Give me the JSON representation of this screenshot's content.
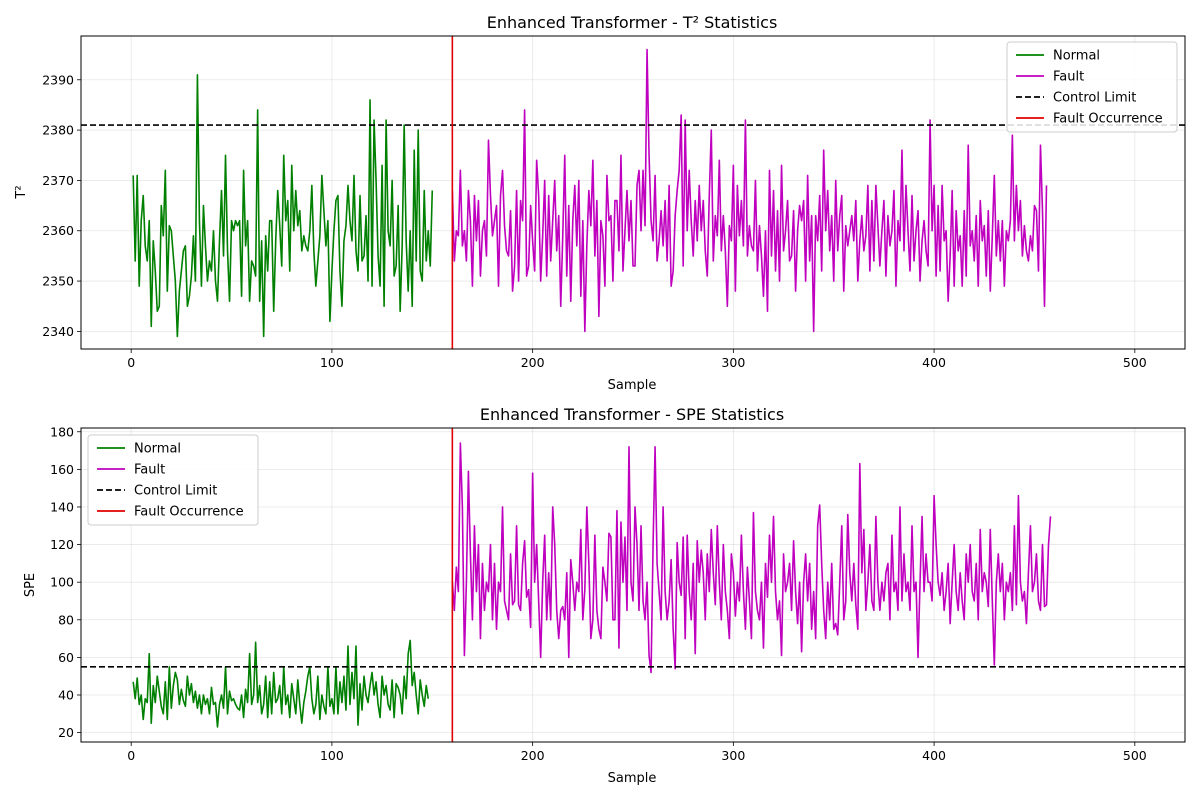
{
  "chart_data": [
    {
      "type": "line",
      "title": "Enhanced Transformer - T² Statistics",
      "xlabel": "Sample",
      "ylabel": "T²",
      "xlim": [
        -25,
        525
      ],
      "ylim": [
        2336.5,
        2398.7
      ],
      "xticks": [
        0,
        100,
        200,
        300,
        400,
        500
      ],
      "yticks": [
        2340,
        2350,
        2360,
        2370,
        2380,
        2390
      ],
      "grid": true,
      "legend_position": "top-right",
      "control_limit": 2381,
      "fault_sample": 160,
      "legend": [
        {
          "label": "Normal",
          "color": "#008000",
          "style": "solid"
        },
        {
          "label": "Fault",
          "color": "#bf00bf",
          "style": "solid"
        },
        {
          "label": "Control Limit",
          "color": "#000000",
          "style": "dashed"
        },
        {
          "label": "Fault Occurrence",
          "color": "#e00000",
          "style": "solid"
        }
      ],
      "series": [
        {
          "name": "Normal",
          "color": "#008000",
          "x_start": 1,
          "values": [
            2371,
            2354,
            2371,
            2349,
            2362,
            2367,
            2357,
            2354,
            2362,
            2341,
            2358,
            2352,
            2344,
            2345,
            2365,
            2359,
            2372,
            2348,
            2361,
            2360,
            2355,
            2350,
            2339,
            2348,
            2352,
            2356,
            2357,
            2345,
            2347,
            2351,
            2359,
            2350,
            2391,
            2362,
            2349,
            2365,
            2357,
            2350,
            2354,
            2352,
            2360,
            2350,
            2346,
            2358,
            2368,
            2355,
            2375,
            2356,
            2346,
            2362,
            2360,
            2362,
            2361,
            2362,
            2347,
            2372,
            2357,
            2362,
            2346,
            2354,
            2353,
            2351,
            2384,
            2346,
            2358,
            2339,
            2359,
            2352,
            2362,
            2362,
            2344,
            2358,
            2368,
            2361,
            2353,
            2375,
            2362,
            2366,
            2352,
            2373,
            2360,
            2368,
            2361,
            2364,
            2356,
            2359,
            2357,
            2356,
            2360,
            2369,
            2356,
            2349,
            2354,
            2359,
            2371,
            2364,
            2357,
            2362,
            2342,
            2352,
            2360,
            2366,
            2367,
            2352,
            2345,
            2358,
            2361,
            2369,
            2362,
            2358,
            2371,
            2356,
            2352,
            2367,
            2354,
            2355,
            2363,
            2350,
            2386,
            2349,
            2382,
            2370,
            2355,
            2349,
            2373,
            2345,
            2382,
            2360,
            2357,
            2370,
            2351,
            2353,
            2365,
            2344,
            2357,
            2381,
            2358,
            2348,
            2360,
            2345,
            2376,
            2354,
            2380,
            2352,
            2350,
            2368,
            2354,
            2360,
            2353,
            2368
          ]
        },
        {
          "name": "Fault",
          "color": "#bf00bf",
          "x_start": 160,
          "values": [
            2368,
            2354,
            2360,
            2359,
            2372,
            2357,
            2360,
            2354,
            2368,
            2362,
            2349,
            2367,
            2358,
            2366,
            2351,
            2360,
            2362,
            2355,
            2378,
            2367,
            2359,
            2362,
            2365,
            2349,
            2367,
            2372,
            2361,
            2356,
            2355,
            2364,
            2348,
            2353,
            2368,
            2350,
            2366,
            2362,
            2384,
            2351,
            2353,
            2365,
            2358,
            2352,
            2374,
            2367,
            2350,
            2359,
            2370,
            2351,
            2367,
            2354,
            2362,
            2370,
            2356,
            2363,
            2345,
            2359,
            2375,
            2351,
            2365,
            2346,
            2362,
            2369,
            2357,
            2370,
            2347,
            2362,
            2340,
            2357,
            2368,
            2361,
            2374,
            2355,
            2366,
            2343,
            2362,
            2359,
            2349,
            2371,
            2362,
            2363,
            2350,
            2366,
            2366,
            2356,
            2375,
            2352,
            2360,
            2368,
            2358,
            2366,
            2353,
            2353,
            2369,
            2372,
            2360,
            2372,
            2361,
            2396,
            2375,
            2362,
            2358,
            2371,
            2354,
            2358,
            2364,
            2357,
            2366,
            2354,
            2369,
            2349,
            2352,
            2363,
            2368,
            2372,
            2383,
            2353,
            2382,
            2360,
            2372,
            2362,
            2355,
            2366,
            2358,
            2369,
            2360,
            2366,
            2356,
            2351,
            2367,
            2380,
            2354,
            2363,
            2359,
            2374,
            2356,
            2363,
            2356,
            2345,
            2361,
            2358,
            2373,
            2348,
            2369,
            2359,
            2366,
            2357,
            2382,
            2355,
            2361,
            2357,
            2356,
            2370,
            2352,
            2361,
            2355,
            2347,
            2360,
            2344,
            2372,
            2355,
            2368,
            2352,
            2364,
            2350,
            2373,
            2356,
            2360,
            2366,
            2354,
            2355,
            2364,
            2348,
            2360,
            2365,
            2362,
            2366,
            2350,
            2371,
            2354,
            2363,
            2340,
            2363,
            2358,
            2367,
            2352,
            2376,
            2360,
            2368,
            2356,
            2363,
            2350,
            2370,
            2356,
            2363,
            2367,
            2348,
            2361,
            2357,
            2360,
            2363,
            2358,
            2366,
            2350,
            2358,
            2363,
            2356,
            2359,
            2369,
            2352,
            2366,
            2354,
            2369,
            2361,
            2353,
            2360,
            2366,
            2351,
            2363,
            2357,
            2360,
            2368,
            2349,
            2362,
            2358,
            2376,
            2356,
            2369,
            2360,
            2352,
            2367,
            2354,
            2360,
            2364,
            2350,
            2358,
            2362,
            2356,
            2353,
            2382,
            2360,
            2369,
            2351,
            2365,
            2352,
            2369,
            2358,
            2360,
            2346,
            2355,
            2368,
            2349,
            2364,
            2356,
            2359,
            2349,
            2364,
            2351,
            2377,
            2357,
            2360,
            2354,
            2363,
            2349,
            2366,
            2358,
            2361,
            2351,
            2364,
            2348,
            2359,
            2371,
            2355,
            2362,
            2354,
            2362,
            2349,
            2360,
            2358,
            2362,
            2379,
            2358,
            2369,
            2360,
            2366,
            2355,
            2361,
            2356,
            2354,
            2359,
            2356,
            2365,
            2364,
            2352,
            2377,
            2364,
            2345,
            2369
          ]
        }
      ]
    },
    {
      "type": "line",
      "title": "Enhanced Transformer - SPE Statistics",
      "xlabel": "Sample",
      "ylabel": "SPE",
      "xlim": [
        -25,
        525
      ],
      "ylim": [
        15,
        182
      ],
      "xticks": [
        0,
        100,
        200,
        300,
        400,
        500
      ],
      "yticks": [
        20,
        40,
        60,
        80,
        100,
        120,
        140,
        160,
        180
      ],
      "grid": true,
      "legend_position": "top-left",
      "control_limit": 55,
      "fault_sample": 160,
      "legend": [
        {
          "label": "Normal",
          "color": "#008000",
          "style": "solid"
        },
        {
          "label": "Fault",
          "color": "#bf00bf",
          "style": "solid"
        },
        {
          "label": "Control Limit",
          "color": "#000000",
          "style": "dashed"
        },
        {
          "label": "Fault Occurrence",
          "color": "#e00000",
          "style": "solid"
        }
      ],
      "series": [
        {
          "name": "Normal",
          "color": "#008000",
          "x_start": 1,
          "values": [
            47,
            38,
            49,
            35,
            40,
            27,
            38,
            36,
            62,
            25,
            45,
            36,
            50,
            42,
            34,
            30,
            47,
            27,
            55,
            33,
            45,
            52,
            48,
            35,
            43,
            37,
            34,
            50,
            40,
            46,
            36,
            42,
            33,
            40,
            30,
            40,
            35,
            38,
            30,
            44,
            35,
            36,
            23,
            35,
            40,
            33,
            55,
            30,
            42,
            37,
            38,
            35,
            33,
            32,
            40,
            28,
            43,
            36,
            62,
            35,
            40,
            68,
            36,
            45,
            30,
            35,
            50,
            28,
            47,
            30,
            52,
            36,
            38,
            45,
            30,
            55,
            35,
            40,
            28,
            46,
            38,
            30,
            48,
            35,
            25,
            36,
            42,
            50,
            55,
            38,
            30,
            35,
            50,
            27,
            40,
            34,
            30,
            55,
            34,
            38,
            30,
            55,
            30,
            47,
            36,
            50,
            32,
            66,
            35,
            52,
            38,
            66,
            24,
            46,
            32,
            50,
            40,
            36,
            45,
            52,
            40,
            47,
            35,
            28,
            50,
            40,
            45,
            35,
            32,
            48,
            28,
            46,
            44,
            40,
            30,
            50,
            38,
            62,
            69,
            45,
            52,
            40,
            30,
            48,
            40,
            34,
            45,
            38
          ]
        },
        {
          "name": "Fault",
          "color": "#bf00bf",
          "x_start": 160,
          "values": [
            100,
            85,
            108,
            95,
            174,
            140,
            61,
            100,
            159,
            115,
            80,
            130,
            95,
            120,
            70,
            110,
            85,
            100,
            95,
            120,
            80,
            110,
            75,
            100,
            95,
            140,
            90,
            85,
            80,
            115,
            88,
            90,
            130,
            88,
            85,
            110,
            122,
            92,
            96,
            76,
            158,
            100,
            120,
            90,
            60,
            100,
            125,
            80,
            105,
            80,
            140,
            120,
            85,
            70,
            85,
            87,
            80,
            105,
            60,
            112,
            100,
            85,
            100,
            95,
            128,
            80,
            96,
            140,
            110,
            70,
            80,
            125,
            85,
            75,
            70,
            108,
            100,
            90,
            126,
            124,
            80,
            80,
            138,
            65,
            132,
            100,
            124,
            85,
            172,
            100,
            90,
            140,
            120,
            85,
            130,
            90,
            80,
            100,
            61,
            52,
            120,
            172,
            110,
            95,
            80,
            140,
            95,
            80,
            90,
            112,
            75,
            54,
            121,
            100,
            93,
            124,
            70,
            125,
            95,
            80,
            110,
            62,
            122,
            100,
            117,
            105,
            80,
            115,
            95,
            128,
            105,
            88,
            130,
            100,
            80,
            120,
            95,
            85,
            70,
            115,
            105,
            82,
            100,
            90,
            125,
            95,
            75,
            108,
            90,
            70,
            137,
            95,
            85,
            80,
            100,
            65,
            110,
            92,
            125,
            100,
            135,
            95,
            80,
            90,
            61,
            115,
            95,
            100,
            110,
            85,
            122,
            95,
            78,
            100,
            63,
            100,
            115,
            90,
            110,
            75,
            95,
            70,
            130,
            141,
            110,
            85,
            70,
            100,
            80,
            110,
            75,
            78,
            72,
            100,
            130,
            80,
            90,
            136,
            105,
            90,
            110,
            88,
            75,
            163,
            105,
            128,
            85,
            100,
            120,
            90,
            85,
            135,
            100,
            85,
            100,
            90,
            105,
            110,
            80,
            125,
            95,
            100,
            85,
            140,
            90,
            115,
            95,
            100,
            85,
            130,
            95,
            100,
            60,
            100,
            135,
            95,
            115,
            100,
            100,
            90,
            146,
            120,
            100,
            93,
            105,
            85,
            95,
            110,
            78,
            100,
            120,
            95,
            85,
            105,
            90,
            80,
            115,
            100,
            120,
            95,
            90,
            110,
            80,
            128,
            95,
            105,
            100,
            87,
            128,
            90,
            56,
            100,
            115,
            95,
            110,
            80,
            100,
            95,
            105,
            85,
            130,
            88,
            146,
            100,
            90,
            95,
            78,
            105,
            130,
            95,
            100,
            115,
            90,
            85,
            120,
            87,
            88,
            120,
            135
          ]
        }
      ]
    }
  ]
}
